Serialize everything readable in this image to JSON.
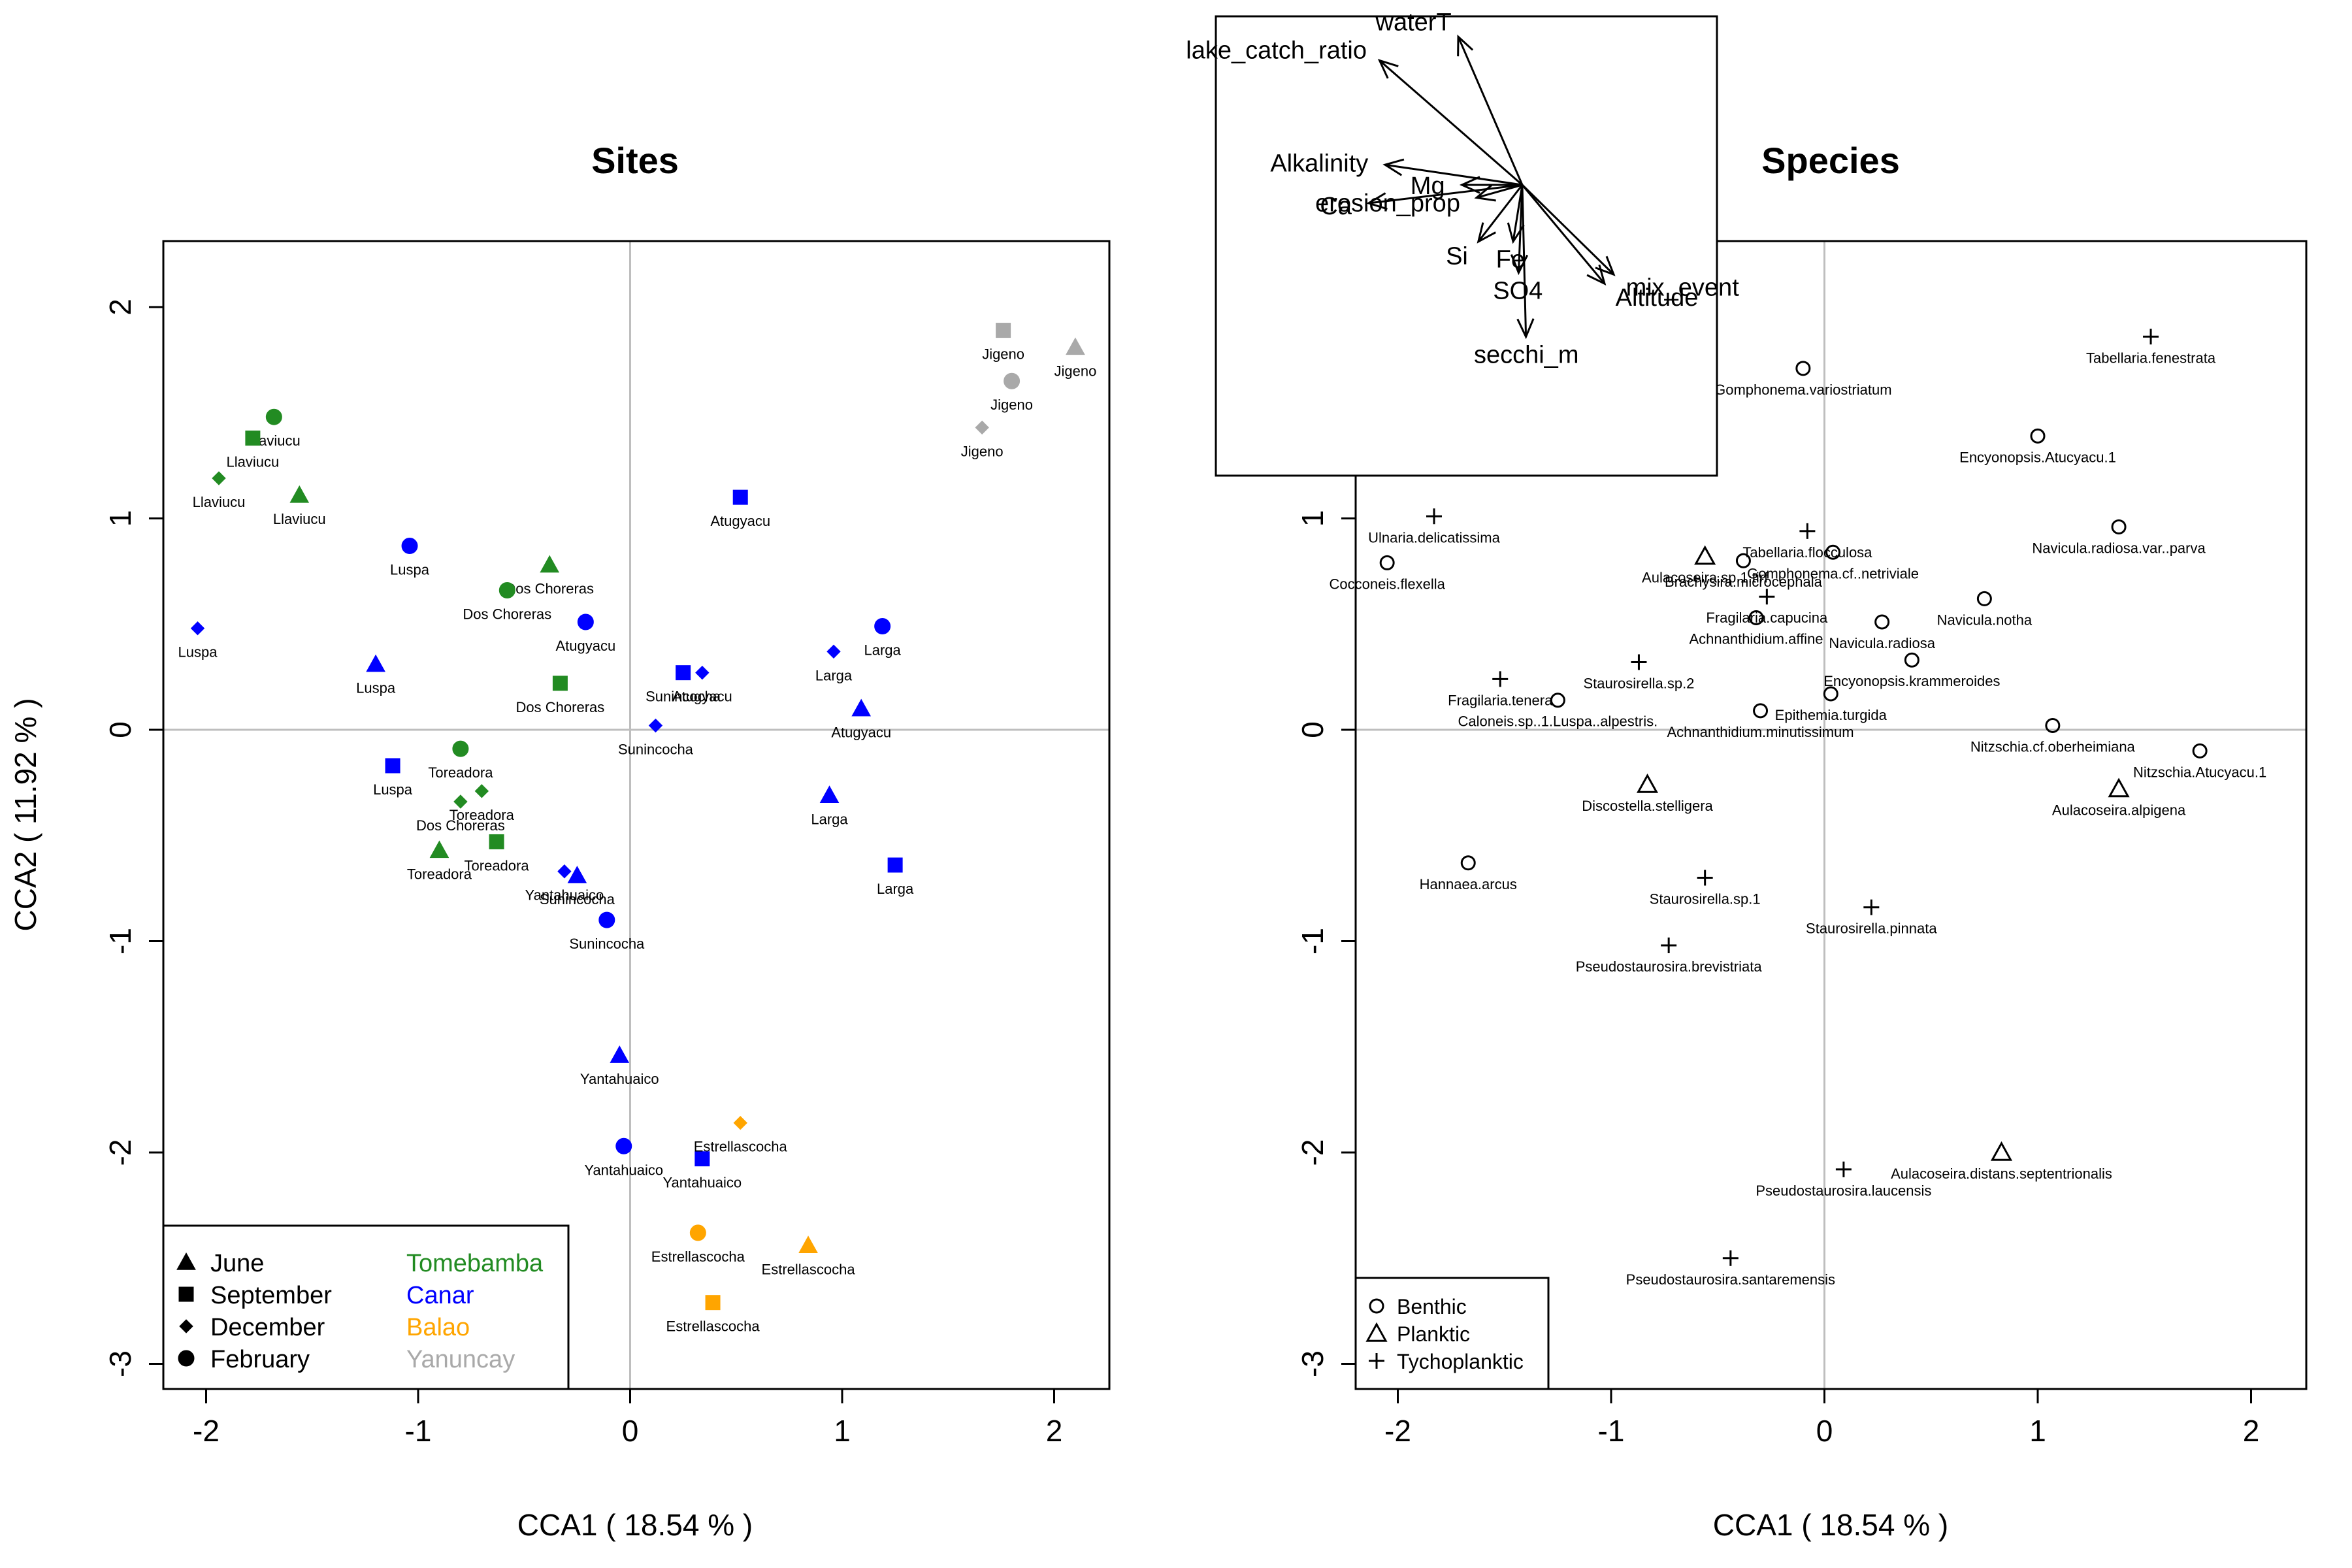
{
  "chart_data": [
    {
      "type": "scatter",
      "title": "Sites",
      "xlabel": "CCA1 ( 18.54 % )",
      "ylabel": "CCA2 ( 11.92 % )",
      "xlim": [
        -2.2,
        2.25
      ],
      "ylim": [
        -3.1,
        2.3
      ],
      "xticks": [
        "-2",
        "-1",
        "0",
        "1",
        "2"
      ],
      "yticks": [
        "-3",
        "-2",
        "-1",
        "0",
        "1",
        "2"
      ],
      "grid": "zero lines",
      "legend_position": "bottom-left",
      "legend_months": [
        {
          "label": "June",
          "marker": "triangle"
        },
        {
          "label": "September",
          "marker": "square"
        },
        {
          "label": "December",
          "marker": "diamond"
        },
        {
          "label": "February",
          "marker": "circle"
        }
      ],
      "legend_rivers": [
        {
          "label": "Tomebamba",
          "color": "#228b22"
        },
        {
          "label": "Canar",
          "color": "#0000ff"
        },
        {
          "label": "Balao",
          "color": "#ffa500"
        },
        {
          "label": "Yanuncay",
          "color": "#a9a9a9"
        }
      ],
      "points": [
        {
          "x": -1.68,
          "y": 1.48,
          "label": "Llaviucu",
          "marker": "circle",
          "color": "#228b22"
        },
        {
          "x": -1.78,
          "y": 1.38,
          "label": "Llaviucu",
          "marker": "square",
          "color": "#228b22"
        },
        {
          "x": -1.94,
          "y": 1.19,
          "label": "Llaviucu",
          "marker": "diamond",
          "color": "#228b22"
        },
        {
          "x": -1.56,
          "y": 1.11,
          "label": "Llaviucu",
          "marker": "triangle",
          "color": "#228b22"
        },
        {
          "x": -1.04,
          "y": 0.87,
          "label": "Luspa",
          "marker": "circle",
          "color": "#0000ff"
        },
        {
          "x": -2.04,
          "y": 0.48,
          "label": "Luspa",
          "marker": "diamond",
          "color": "#0000ff"
        },
        {
          "x": -1.2,
          "y": 0.31,
          "label": "Luspa",
          "marker": "triangle",
          "color": "#0000ff"
        },
        {
          "x": -1.12,
          "y": -0.17,
          "label": "Luspa",
          "marker": "square",
          "color": "#0000ff"
        },
        {
          "x": -0.38,
          "y": 0.78,
          "label": "Dos Choreras",
          "marker": "triangle",
          "color": "#228b22"
        },
        {
          "x": -0.58,
          "y": 0.66,
          "label": "Dos Choreras",
          "marker": "circle",
          "color": "#228b22"
        },
        {
          "x": -0.33,
          "y": 0.22,
          "label": "Dos Choreras",
          "marker": "square",
          "color": "#228b22"
        },
        {
          "x": -0.8,
          "y": -0.34,
          "label": "Dos Choreras",
          "marker": "diamond",
          "color": "#228b22"
        },
        {
          "x": -0.21,
          "y": 0.51,
          "label": "Atugyacu",
          "marker": "circle",
          "color": "#0000ff"
        },
        {
          "x": 0.52,
          "y": 1.1,
          "label": "Atugyacu",
          "marker": "square",
          "color": "#0000ff"
        },
        {
          "x": 1.09,
          "y": 0.1,
          "label": "Atugyacu",
          "marker": "triangle",
          "color": "#0000ff"
        },
        {
          "x": 0.34,
          "y": 0.27,
          "label": "Atugyacu",
          "marker": "diamond",
          "color": "#0000ff"
        },
        {
          "x": 0.25,
          "y": 0.27,
          "label": "Sunincocha",
          "marker": "square",
          "color": "#0000ff"
        },
        {
          "x": 0.12,
          "y": 0.02,
          "label": "Sunincocha",
          "marker": "diamond",
          "color": "#0000ff"
        },
        {
          "x": -0.25,
          "y": -0.69,
          "label": "Sunincocha",
          "marker": "triangle",
          "color": "#0000ff"
        },
        {
          "x": -0.11,
          "y": -0.9,
          "label": "Sunincocha",
          "marker": "circle",
          "color": "#0000ff"
        },
        {
          "x": -0.8,
          "y": -0.09,
          "label": "Toreadora",
          "marker": "circle",
          "color": "#228b22"
        },
        {
          "x": -0.7,
          "y": -0.29,
          "label": "Toreadora",
          "marker": "diamond",
          "color": "#228b22"
        },
        {
          "x": -0.63,
          "y": -0.53,
          "label": "Toreadora",
          "marker": "square",
          "color": "#228b22"
        },
        {
          "x": -0.9,
          "y": -0.57,
          "label": "Toreadora",
          "marker": "triangle",
          "color": "#228b22"
        },
        {
          "x": -0.31,
          "y": -0.67,
          "label": "Yantahuaico",
          "marker": "diamond",
          "color": "#0000ff"
        },
        {
          "x": -0.05,
          "y": -1.54,
          "label": "Yantahuaico",
          "marker": "triangle",
          "color": "#0000ff"
        },
        {
          "x": -0.03,
          "y": -1.97,
          "label": "Yantahuaico",
          "marker": "circle",
          "color": "#0000ff"
        },
        {
          "x": 0.34,
          "y": -2.03,
          "label": "Yantahuaico",
          "marker": "square",
          "color": "#0000ff"
        },
        {
          "x": 1.19,
          "y": 0.49,
          "label": "Larga",
          "marker": "circle",
          "color": "#0000ff"
        },
        {
          "x": 0.96,
          "y": 0.37,
          "label": "Larga",
          "marker": "diamond",
          "color": "#0000ff"
        },
        {
          "x": 0.94,
          "y": -0.31,
          "label": "Larga",
          "marker": "triangle",
          "color": "#0000ff"
        },
        {
          "x": 1.25,
          "y": -0.64,
          "label": "Larga",
          "marker": "square",
          "color": "#0000ff"
        },
        {
          "x": 1.76,
          "y": 1.89,
          "label": "Jigeno",
          "marker": "square",
          "color": "#a9a9a9"
        },
        {
          "x": 2.1,
          "y": 1.81,
          "label": "Jigeno",
          "marker": "triangle",
          "color": "#a9a9a9"
        },
        {
          "x": 1.8,
          "y": 1.65,
          "label": "Jigeno",
          "marker": "circle",
          "color": "#a9a9a9"
        },
        {
          "x": 1.66,
          "y": 1.43,
          "label": "Jigeno",
          "marker": "diamond",
          "color": "#a9a9a9"
        },
        {
          "x": 0.52,
          "y": -1.86,
          "label": "Estrellascocha",
          "marker": "diamond",
          "color": "#ffa500"
        },
        {
          "x": 0.32,
          "y": -2.38,
          "label": "Estrellascocha",
          "marker": "circle",
          "color": "#ffa500"
        },
        {
          "x": 0.84,
          "y": -2.44,
          "label": "Estrellascocha",
          "marker": "triangle",
          "color": "#ffa500"
        },
        {
          "x": 0.39,
          "y": -2.71,
          "label": "Estrellascocha",
          "marker": "square",
          "color": "#ffa500"
        }
      ]
    },
    {
      "type": "scatter",
      "title": "Species",
      "xlabel": "CCA1 ( 18.54 % )",
      "ylabel": "",
      "xlim": [
        -2.2,
        2.25
      ],
      "ylim": [
        -3.1,
        2.3
      ],
      "xticks": [
        "-2",
        "-1",
        "0",
        "1",
        "2"
      ],
      "yticks": [
        "-3",
        "-2",
        "-1",
        "0",
        "1",
        "2"
      ],
      "grid": "zero lines",
      "legend_position": "bottom-left",
      "legend": [
        {
          "label": "Benthic",
          "marker": "circle"
        },
        {
          "label": "Planktic",
          "marker": "triangle"
        },
        {
          "label": "Tychoplanktic",
          "marker": "plus"
        }
      ],
      "points": [
        {
          "x": 1.53,
          "y": 1.86,
          "label": "Tabellaria.fenestrata",
          "marker": "plus"
        },
        {
          "x": -0.1,
          "y": 1.71,
          "label": "Gomphonema.variostriatum",
          "marker": "circle"
        },
        {
          "x": 1.0,
          "y": 1.39,
          "label": "Encyonopsis.Atucyacu.1",
          "marker": "circle"
        },
        {
          "x": -1.83,
          "y": 1.01,
          "label": "Ulnaria.delicatissima",
          "marker": "plus"
        },
        {
          "x": 1.38,
          "y": 0.96,
          "label": "Navicula.radiosa.var..parva",
          "marker": "circle"
        },
        {
          "x": -0.08,
          "y": 0.94,
          "label": "Tabellaria.flocculosa",
          "marker": "plus"
        },
        {
          "x": -2.05,
          "y": 0.79,
          "label": "Cocconeis.flexella",
          "marker": "circle"
        },
        {
          "x": -0.56,
          "y": 0.82,
          "label": "Aulacoseira.sp.1.tirf",
          "marker": "triangle"
        },
        {
          "x": -0.38,
          "y": 0.8,
          "label": "Brachysira.microcephala",
          "marker": "circle"
        },
        {
          "x": 0.04,
          "y": 0.84,
          "label": "Gomphonema.cf..netriviale",
          "marker": "circle"
        },
        {
          "x": -0.27,
          "y": 0.63,
          "label": "Fragilaria.capucina",
          "marker": "plus"
        },
        {
          "x": 0.75,
          "y": 0.62,
          "label": "Navicula.notha",
          "marker": "circle"
        },
        {
          "x": -0.32,
          "y": 0.53,
          "label": "Achnanthidium.affine",
          "marker": "circle"
        },
        {
          "x": 0.27,
          "y": 0.51,
          "label": "Navicula.radiosa",
          "marker": "circle"
        },
        {
          "x": -0.87,
          "y": 0.32,
          "label": "Staurosirella.sp.2",
          "marker": "plus"
        },
        {
          "x": 0.41,
          "y": 0.33,
          "label": "Encyonopsis.krammeroides",
          "marker": "circle"
        },
        {
          "x": -1.52,
          "y": 0.24,
          "label": "Fragilaria.tenera",
          "marker": "plus"
        },
        {
          "x": -1.25,
          "y": 0.14,
          "label": "Caloneis.sp..1.Luspa..alpestris.",
          "marker": "circle"
        },
        {
          "x": 0.03,
          "y": 0.17,
          "label": "Epithemia.turgida",
          "marker": "circle"
        },
        {
          "x": -0.3,
          "y": 0.09,
          "label": "Achnanthidium.minutissimum",
          "marker": "circle"
        },
        {
          "x": 1.07,
          "y": 0.02,
          "label": "Nitzschia.cf.oberheimiana",
          "marker": "circle"
        },
        {
          "x": 1.76,
          "y": -0.1,
          "label": "Nitzschia.Atucyacu.1",
          "marker": "circle"
        },
        {
          "x": 1.38,
          "y": -0.28,
          "label": "Aulacoseira.alpigena",
          "marker": "triangle"
        },
        {
          "x": -0.83,
          "y": -0.26,
          "label": "Discostella.stelligera",
          "marker": "triangle"
        },
        {
          "x": -1.67,
          "y": -0.63,
          "label": "Hannaea.arcus",
          "marker": "circle"
        },
        {
          "x": -0.56,
          "y": -0.7,
          "label": "Staurosirella.sp.1",
          "marker": "plus"
        },
        {
          "x": 0.22,
          "y": -0.84,
          "label": "Staurosirella.pinnata",
          "marker": "plus"
        },
        {
          "x": -0.73,
          "y": -1.02,
          "label": "Pseudostaurosira.brevistriata",
          "marker": "plus"
        },
        {
          "x": 0.83,
          "y": -2.0,
          "label": "Aulacoseira.distans.septentrionalis",
          "marker": "triangle"
        },
        {
          "x": 0.09,
          "y": -2.08,
          "label": "Pseudostaurosira.laucensis",
          "marker": "plus"
        },
        {
          "x": -0.44,
          "y": -2.5,
          "label": "Pseudostaurosira.santaremensis",
          "marker": "plus"
        }
      ]
    },
    {
      "type": "biplot",
      "vectors": [
        {
          "label": "waterT",
          "dx": -0.35,
          "dy": 0.81
        },
        {
          "label": "lake_catch_ratio",
          "dx": -0.78,
          "dy": 0.68
        },
        {
          "label": "Alkalinity",
          "dx": -0.75,
          "dy": 0.11
        },
        {
          "label": "Ca",
          "dx": -0.84,
          "dy": -0.1
        },
        {
          "label": "Mg",
          "dx": -0.33,
          "dy": 0.0
        },
        {
          "label": "erosion_prop",
          "dx": -0.25,
          "dy": -0.07
        },
        {
          "label": "Si",
          "dx": -0.24,
          "dy": -0.31
        },
        {
          "label": "Fe",
          "dx": -0.05,
          "dy": -0.31
        },
        {
          "label": "SO4",
          "dx": -0.02,
          "dy": -0.48
        },
        {
          "label": "secchi_m",
          "dx": 0.02,
          "dy": -0.83
        },
        {
          "label": "mix_event",
          "dx": 0.5,
          "dy": -0.49
        },
        {
          "label": "Altitude",
          "dx": 0.45,
          "dy": -0.54
        }
      ]
    }
  ]
}
